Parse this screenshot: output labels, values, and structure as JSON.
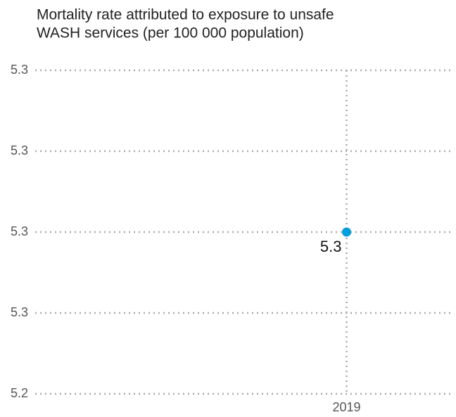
{
  "chart_data": {
    "type": "scatter",
    "title": [
      "Mortality rate attributed to exposure to unsafe",
      "WASH services (per 100 000 population)"
    ],
    "x": [
      2019
    ],
    "values": [
      5.28
    ],
    "value_labels": [
      "5.3"
    ],
    "color": "#009edb",
    "xlim": [
      2011.5,
      2021.5
    ],
    "xticks": [
      2019
    ],
    "ylim": [
      5.24,
      5.32
    ],
    "yticks": [
      {
        "value": 5.24,
        "label": "5.2"
      },
      {
        "value": 5.26,
        "label": "5.3"
      },
      {
        "value": 5.28,
        "label": "5.3"
      },
      {
        "value": 5.3,
        "label": "5.3"
      },
      {
        "value": 5.32,
        "label": "5.3"
      }
    ],
    "grid": true
  }
}
